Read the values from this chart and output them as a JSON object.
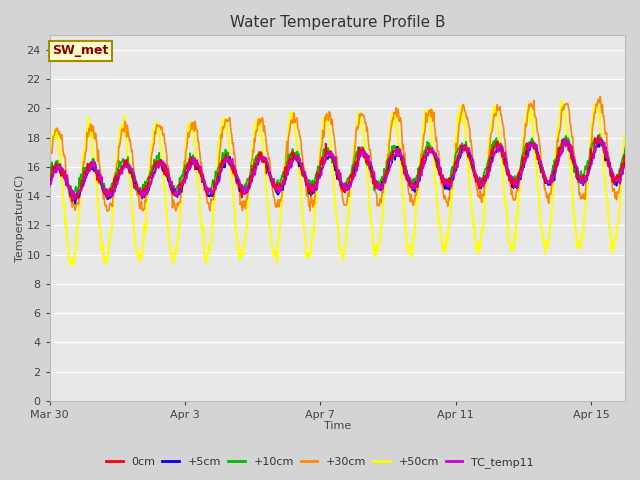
{
  "title": "Water Temperature Profile B",
  "xlabel": "Time",
  "ylabel": "Temperature(C)",
  "ylim": [
    0,
    25
  ],
  "yticks": [
    0,
    2,
    4,
    6,
    8,
    10,
    12,
    14,
    16,
    18,
    20,
    22,
    24
  ],
  "fig_bg_color": "#d4d4d4",
  "plot_bg_color": "#e8e8e8",
  "annotation_text": "SW_met",
  "annotation_bg": "#ffffcc",
  "annotation_border": "#aa8800",
  "annotation_text_color": "#880000",
  "series": {
    "0cm": {
      "color": "#ff0000",
      "lw": 1.2,
      "zorder": 5
    },
    "+5cm": {
      "color": "#0000ee",
      "lw": 1.2,
      "zorder": 4
    },
    "+10cm": {
      "color": "#00bb00",
      "lw": 1.2,
      "zorder": 3
    },
    "+30cm": {
      "color": "#ff8800",
      "lw": 1.2,
      "zorder": 2
    },
    "+50cm": {
      "color": "#ffff00",
      "lw": 1.5,
      "zorder": 1
    },
    "TC_temp11": {
      "color": "#cc00cc",
      "lw": 1.2,
      "zorder": 6
    }
  },
  "xtick_labels": [
    "Mar 30",
    "Apr 3",
    "Apr 7",
    "Apr 11",
    "Apr 15"
  ],
  "xtick_positions": [
    0,
    4,
    8,
    12,
    16
  ],
  "num_days": 17,
  "points_per_day": 48
}
